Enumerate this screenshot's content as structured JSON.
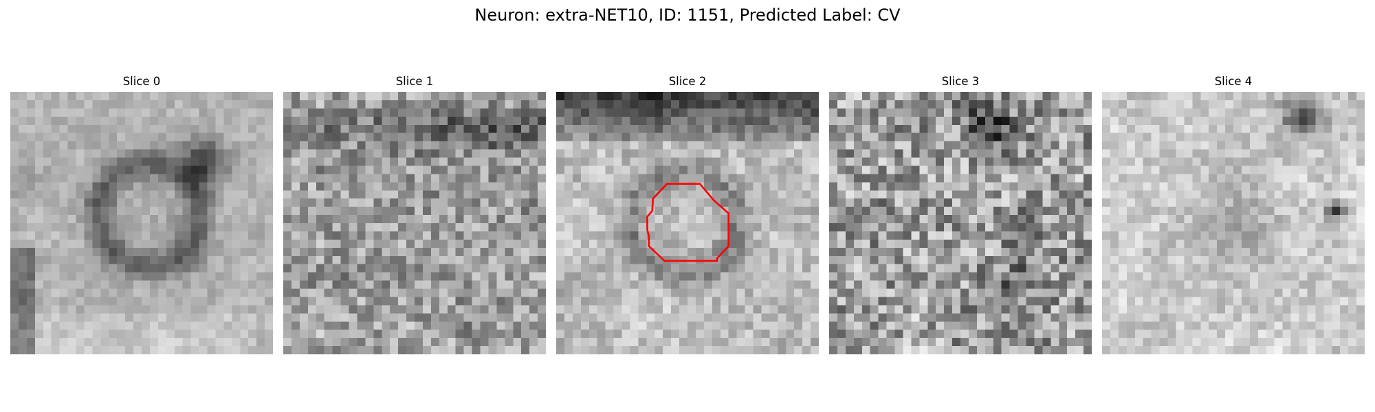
{
  "suptitle": "Neuron: extra-NET10, ID: 1151, Predicted Label: CV",
  "panels": [
    {
      "title": "Slice 0",
      "blob_intensity": "dark ring upper-right",
      "has_outline": false
    },
    {
      "title": "Slice 1",
      "blob_intensity": "noisy",
      "has_outline": false
    },
    {
      "title": "Slice 2",
      "blob_intensity": "dark band top, light ring",
      "has_outline": true
    },
    {
      "title": "Slice 3",
      "blob_intensity": "noisy",
      "has_outline": false
    },
    {
      "title": "Slice 4",
      "blob_intensity": "light, dark spot top-right",
      "has_outline": false
    }
  ],
  "colors": {
    "outline": "#ff0000",
    "colormap": "gray"
  }
}
